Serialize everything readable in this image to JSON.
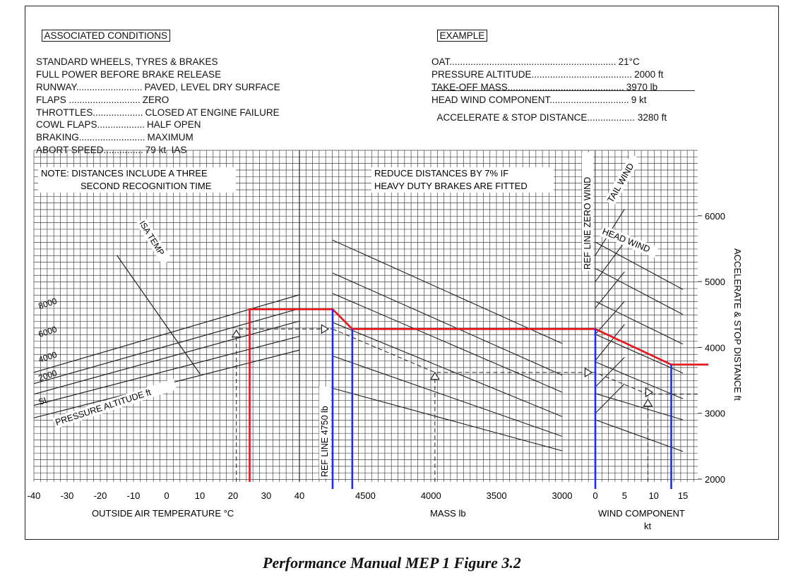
{
  "associated_conditions": {
    "title": "ASSOCIATED CONDITIONS",
    "rows": [
      {
        "label": "STANDARD WHEELS, TYRES & BRAKES",
        "value": ""
      },
      {
        "label": "FULL POWER BEFORE BRAKE RELEASE",
        "value": ""
      },
      {
        "label": "RUNWAY.........................",
        "value": "PAVED, LEVEL DRY SURFACE"
      },
      {
        "label": "FLAPS ...........................",
        "value": "ZERO"
      },
      {
        "label": "THROTTLES...................",
        "value": "CLOSED AT ENGINE FAILURE"
      },
      {
        "label": "COWL FLAPS..................",
        "value": "HALF OPEN"
      },
      {
        "label": "BRAKING.........................",
        "value": "MAXIMUM"
      },
      {
        "label": "ABORT SPEED...............",
        "value": "79 kt  IAS"
      }
    ]
  },
  "example": {
    "title": "EXAMPLE",
    "rows": [
      {
        "label": "OAT...............................................................",
        "value": "21°C"
      },
      {
        "label": "PRESSURE ALTITUDE......................................",
        "value": "2000 ft"
      },
      {
        "label": "TAKE-OFF MASS............................................",
        "value": "3970 lb"
      },
      {
        "label": "HEAD WIND COMPONENT..............................",
        "value": "9 kt"
      }
    ],
    "result": {
      "label": "ACCELERATE & STOP DISTANCE..................",
      "value": "3280 ft"
    }
  },
  "notes": {
    "note_line1": "NOTE:  DISTANCES INCLUDE A THREE",
    "note_line2": "SECOND RECOGNITION TIME",
    "reduce_line1": "REDUCE DISTANCES BY 7% IF",
    "reduce_line2": "HEAVY DUTY BRAKES ARE FITTED"
  },
  "labels": {
    "isa_temp": "ISA TEMP",
    "pressure_altitude": "PRESSURE ALTITUDE  ft",
    "ref_line_mass": "REF LINE  4750 lb",
    "ref_line_wind": "REF LINE   ZERO WIND",
    "tail_wind": "TAIL WIND",
    "head_wind": "HEAD WIND"
  },
  "caption": "Performance Manual MEP 1 Figure 3.2",
  "colors": {
    "overlay_red": "#e8141b",
    "overlay_blue": "#1a2bff",
    "grid": "#333333"
  },
  "chart_data": {
    "type": "line",
    "title": "",
    "panels": [
      {
        "name": "temperature",
        "xlabel": "OUTSIDE AIR TEMPERATURE  °C",
        "xlim": [
          -40,
          40
        ],
        "x_ticks": [
          "-40",
          "-30",
          "-20",
          "-10",
          "0",
          "10",
          "20",
          "30",
          "40"
        ],
        "series": [
          {
            "name": "SL",
            "x": [
              -40,
              40
            ],
            "y": [
              2930,
              3960
            ]
          },
          {
            "name": "2000",
            "x": [
              -40,
              40
            ],
            "y": [
              3120,
              4170
            ]
          },
          {
            "name": "4000",
            "x": [
              -40,
              40
            ],
            "y": [
              3290,
              4400
            ]
          },
          {
            "name": "6000",
            "x": [
              -40,
              40
            ],
            "y": [
              3450,
              4590
            ]
          },
          {
            "name": "8000",
            "x": [
              -40,
              40
            ],
            "y": [
              3620,
              4800
            ]
          },
          {
            "name": "ISA TEMP",
            "x": [
              -15,
              10
            ],
            "y": [
              5400,
              3600
            ]
          }
        ],
        "example_oat": 21
      },
      {
        "name": "mass",
        "xlabel": "MASS  lb",
        "xlim": [
          4750,
          3000
        ],
        "x_ticks": [
          "4500",
          "4000",
          "3500",
          "3000"
        ],
        "guide_lines": [
          {
            "x": [
              4750,
              3000
            ],
            "y": [
              5630,
              4060
            ]
          },
          {
            "x": [
              4750,
              3000
            ],
            "y": [
              5130,
              3580
            ]
          },
          {
            "x": [
              4750,
              3000
            ],
            "y": [
              4820,
              3320
            ]
          },
          {
            "x": [
              4750,
              3000
            ],
            "y": [
              4380,
              2950
            ]
          },
          {
            "x": [
              4750,
              3000
            ],
            "y": [
              3870,
              2650
            ]
          },
          {
            "x": [
              4750,
              3000
            ],
            "y": [
              3380,
              2430
            ]
          }
        ],
        "example_mass": 3970
      },
      {
        "name": "wind",
        "xlabel": "WIND COMPONENT",
        "xlabel2": "kt",
        "xlim": [
          0,
          15
        ],
        "x_ticks": [
          "0",
          "5",
          "10",
          "15"
        ],
        "headwind_lines": [
          {
            "x": [
              0,
              15
            ],
            "y": [
              5600,
              4880
            ]
          },
          {
            "x": [
              0,
              15
            ],
            "y": [
              5200,
              4500
            ]
          },
          {
            "x": [
              0,
              15
            ],
            "y": [
              4700,
              4050
            ]
          },
          {
            "x": [
              0,
              15
            ],
            "y": [
              4200,
              3610
            ]
          },
          {
            "x": [
              0,
              15
            ],
            "y": [
              3780,
              3220
            ]
          },
          {
            "x": [
              0,
              15
            ],
            "y": [
              3300,
              2900
            ]
          },
          {
            "x": [
              0,
              15
            ],
            "y": [
              2900,
              2420
            ]
          }
        ],
        "tailwind_lines": [
          {
            "x": [
              0,
              5
            ],
            "y": [
              3000,
              3450
            ]
          },
          {
            "x": [
              0,
              5
            ],
            "y": [
              3400,
              3850
            ]
          },
          {
            "x": [
              0,
              5
            ],
            "y": [
              3800,
              4350
            ]
          },
          {
            "x": [
              0,
              5
            ],
            "y": [
              4200,
              4700
            ]
          },
          {
            "x": [
              0,
              5
            ],
            "y": [
              4600,
              5150
            ]
          },
          {
            "x": [
              0,
              5
            ],
            "y": [
              5000,
              5600
            ]
          },
          {
            "x": [
              0,
              5
            ],
            "y": [
              5400,
              6100
            ]
          }
        ],
        "example_wind": 9
      }
    ],
    "ylabel": "ACCELERATE & STOP DISTANCE  ft",
    "ylim": [
      2000,
      6000
    ],
    "y_ticks": [
      "2000",
      "3000",
      "4000",
      "5000",
      "6000"
    ],
    "altitude_labels": [
      "8000",
      "6000",
      "4000",
      "2000",
      "SL"
    ],
    "example_answer_ft": 3280,
    "red_path": {
      "oat": 25,
      "ref_line_distance": 4580,
      "mass_distance": 4280,
      "wind_distance": 3740
    },
    "blue_verticals": [
      "ref line 4750 lb",
      "mass 4600 lb",
      "ref line zero wind",
      "wind 13 kt"
    ],
    "grid": true
  }
}
